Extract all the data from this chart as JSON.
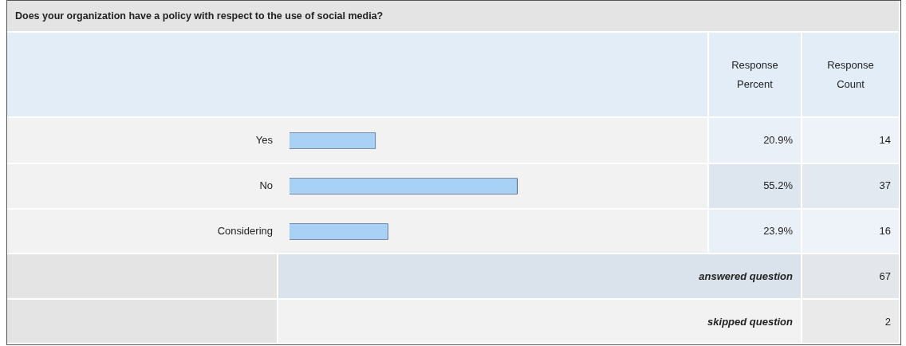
{
  "chart_data": {
    "type": "bar",
    "orientation": "horizontal",
    "title": "Does your organization have a policy with respect to the use of social media?",
    "categories": [
      "Yes",
      "No",
      "Considering"
    ],
    "values": [
      20.9,
      55.2,
      23.9
    ],
    "value_labels": [
      "20.9%",
      "55.2%",
      "23.9%"
    ],
    "color": "#a9d0f5",
    "legend": false,
    "annotations": [
      "Response Percent",
      "Response Count",
      "answered question",
      "67",
      "skipped question",
      "2",
      "14",
      "37",
      "16"
    ]
  }
}
